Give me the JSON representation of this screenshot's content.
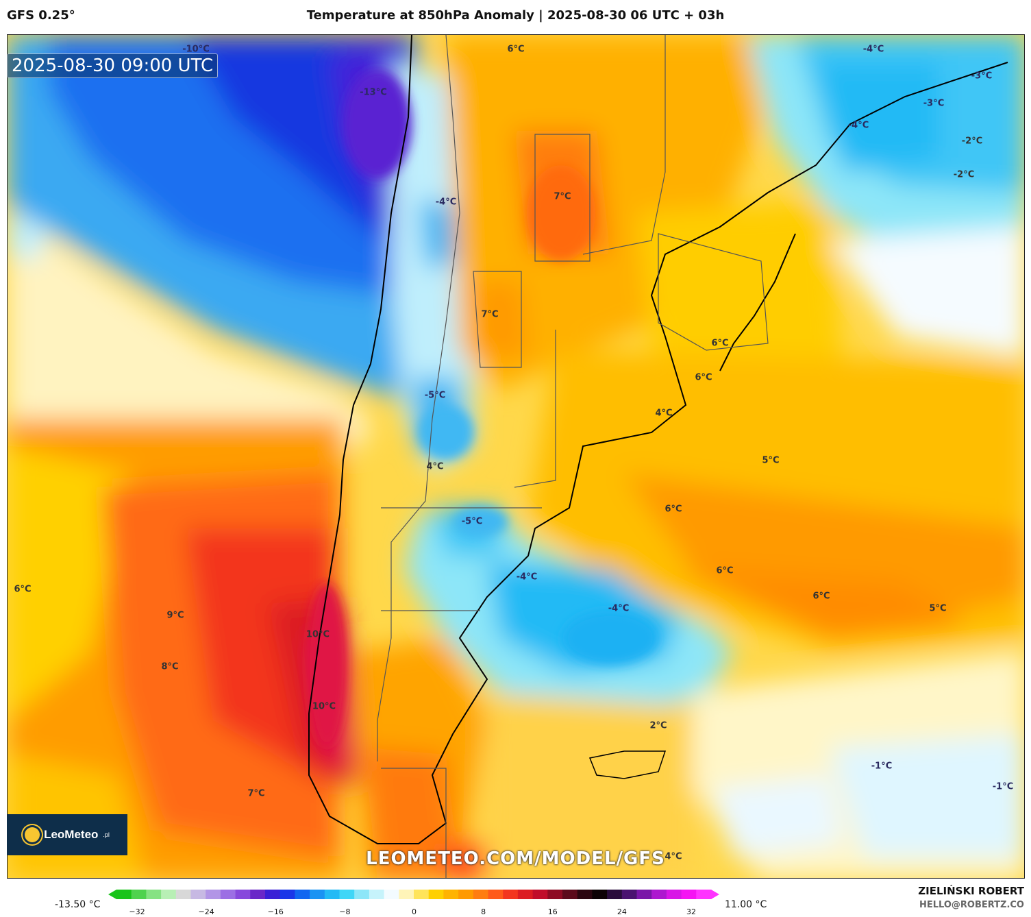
{
  "header": {
    "model": "GFS 0.25°",
    "title": "Temperature at 850hPa Anomaly | 2025-08-30 06 UTC + 03h"
  },
  "map": {
    "valid_time": "2025-08-30 09:00 UTC",
    "watermark": "LEOMETEO.COM/MODEL/GFS",
    "logo": {
      "name": "LeoMeteo",
      "tld": ".pl"
    },
    "labels": [
      "-10°C",
      "-13°C",
      "6°C",
      "-4°C",
      "-3°C",
      "-3°C",
      "-4°C",
      "-2°C",
      "-2°C",
      "-4°C",
      "7°C",
      "7°C",
      "-5°C",
      "6°C",
      "6°C",
      "4°C",
      "4°C",
      "5°C",
      "-5°C",
      "6°C",
      "6°C",
      "-4°C",
      "6°C",
      "-4°C",
      "5°C",
      "6°C",
      "9°C",
      "10°C",
      "8°C",
      "10°C",
      "2°C",
      "-1°C",
      "-1°C",
      "7°C",
      "4°C"
    ]
  },
  "colorbar": {
    "min_label": "-13.50 °C",
    "max_label": "11.00 °C",
    "ticks": [
      "−32",
      "−24",
      "−16",
      "−8",
      "0",
      "8",
      "16",
      "24",
      "32"
    ],
    "colors": [
      "#19c41a",
      "#4fd24e",
      "#86e283",
      "#b8efb5",
      "#d8d8d8",
      "#c7b9e3",
      "#b295e6",
      "#9c6fe4",
      "#8749dc",
      "#6a27c8",
      "#3a1fd6",
      "#1a36e8",
      "#1166f0",
      "#1a93f3",
      "#23baf5",
      "#3fd6f7",
      "#8de6f8",
      "#c6f3fb",
      "#f3fbff",
      "#fff4b8",
      "#ffe45a",
      "#ffd000",
      "#ffb300",
      "#ff9a00",
      "#ff7d10",
      "#ff5a1a",
      "#f3351f",
      "#dc1c22",
      "#c10d2a",
      "#8e0b23",
      "#5c0a1b",
      "#2b0610",
      "#0d0205",
      "#2a0c3c",
      "#4a1270",
      "#7a16a8",
      "#ad18cf",
      "#d816e6",
      "#f514f3",
      "#ff33ff"
    ]
  },
  "footer": {
    "author": "ZIELIŃSKI ROBERT",
    "email": "HELLO@ROBERTZ.CO"
  }
}
